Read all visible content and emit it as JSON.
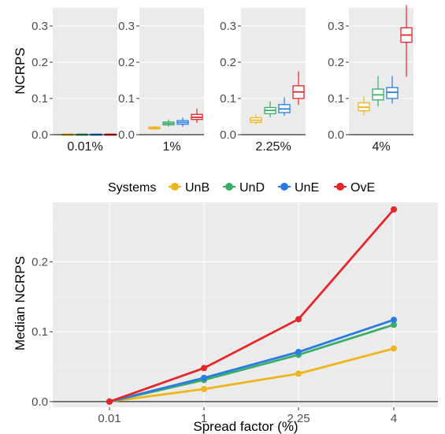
{
  "chart_data": [
    {
      "type": "box",
      "ylabel": "NCRPS",
      "ylim": [
        0,
        0.35
      ],
      "yticks": [
        "0.0",
        "0.1",
        "0.2",
        "0.3"
      ],
      "systems": [
        "UnB",
        "UnD",
        "UnE",
        "OvE"
      ],
      "panels": [
        {
          "label": "0.01%",
          "boxes": [
            {
              "system": "UnB",
              "min": 0.0005,
              "q1": 0.0008,
              "median": 0.001,
              "q3": 0.0012,
              "max": 0.0015
            },
            {
              "system": "UnD",
              "min": 0.0005,
              "q1": 0.0008,
              "median": 0.001,
              "q3": 0.0012,
              "max": 0.0015
            },
            {
              "system": "UnE",
              "min": 0.0005,
              "q1": 0.0008,
              "median": 0.001,
              "q3": 0.0012,
              "max": 0.0015
            },
            {
              "system": "OvE",
              "min": 0.0005,
              "q1": 0.0008,
              "median": 0.001,
              "q3": 0.0012,
              "max": 0.0015
            }
          ]
        },
        {
          "label": "1%",
          "boxes": [
            {
              "system": "UnB",
              "min": 0.014,
              "q1": 0.016,
              "median": 0.018,
              "q3": 0.021,
              "max": 0.024
            },
            {
              "system": "UnD",
              "min": 0.022,
              "q1": 0.027,
              "median": 0.031,
              "q3": 0.035,
              "max": 0.042
            },
            {
              "system": "UnE",
              "min": 0.022,
              "q1": 0.029,
              "median": 0.034,
              "q3": 0.039,
              "max": 0.047
            },
            {
              "system": "OvE",
              "min": 0.033,
              "q1": 0.042,
              "median": 0.048,
              "q3": 0.056,
              "max": 0.072
            }
          ]
        },
        {
          "label": "2.25%",
          "boxes": [
            {
              "system": "UnB",
              "min": 0.028,
              "q1": 0.034,
              "median": 0.04,
              "q3": 0.047,
              "max": 0.055
            },
            {
              "system": "UnD",
              "min": 0.048,
              "q1": 0.058,
              "median": 0.067,
              "q3": 0.075,
              "max": 0.092
            },
            {
              "system": "UnE",
              "min": 0.052,
              "q1": 0.061,
              "median": 0.071,
              "q3": 0.083,
              "max": 0.103
            },
            {
              "system": "OvE",
              "min": 0.082,
              "q1": 0.1,
              "median": 0.118,
              "q3": 0.135,
              "max": 0.175
            }
          ]
        },
        {
          "label": "4%",
          "boxes": [
            {
              "system": "UnB",
              "min": 0.052,
              "q1": 0.066,
              "median": 0.076,
              "q3": 0.088,
              "max": 0.106
            },
            {
              "system": "UnD",
              "min": 0.078,
              "q1": 0.096,
              "median": 0.11,
              "q3": 0.126,
              "max": 0.162
            },
            {
              "system": "UnE",
              "min": 0.086,
              "q1": 0.1,
              "median": 0.117,
              "q3": 0.13,
              "max": 0.162
            },
            {
              "system": "OvE",
              "min": 0.16,
              "q1": 0.255,
              "median": 0.275,
              "q3": 0.295,
              "max": 0.358
            }
          ]
        }
      ]
    },
    {
      "type": "line",
      "xlabel": "Spread factor (%)",
      "ylabel": "Median NCRPS",
      "categories": [
        "0.01",
        "1",
        "2.25",
        "4"
      ],
      "ylim": [
        -0.008,
        0.285
      ],
      "yticks": [
        "0.0",
        "0.1",
        "0.2"
      ],
      "grid": true,
      "legend": {
        "title": "Systems",
        "position": "top"
      },
      "series": [
        {
          "name": "UnB",
          "values": [
            0.0,
            0.018,
            0.04,
            0.076
          ]
        },
        {
          "name": "UnD",
          "values": [
            0.0,
            0.031,
            0.067,
            0.11
          ]
        },
        {
          "name": "UnE",
          "values": [
            0.0,
            0.034,
            0.071,
            0.117
          ]
        },
        {
          "name": "OvE",
          "values": [
            0.0,
            0.048,
            0.118,
            0.275
          ]
        }
      ]
    }
  ],
  "colors": {
    "UnB": "#EFB51F",
    "UnD": "#3AAE68",
    "UnE": "#2B7CE0",
    "OvE": "#E8252B"
  }
}
